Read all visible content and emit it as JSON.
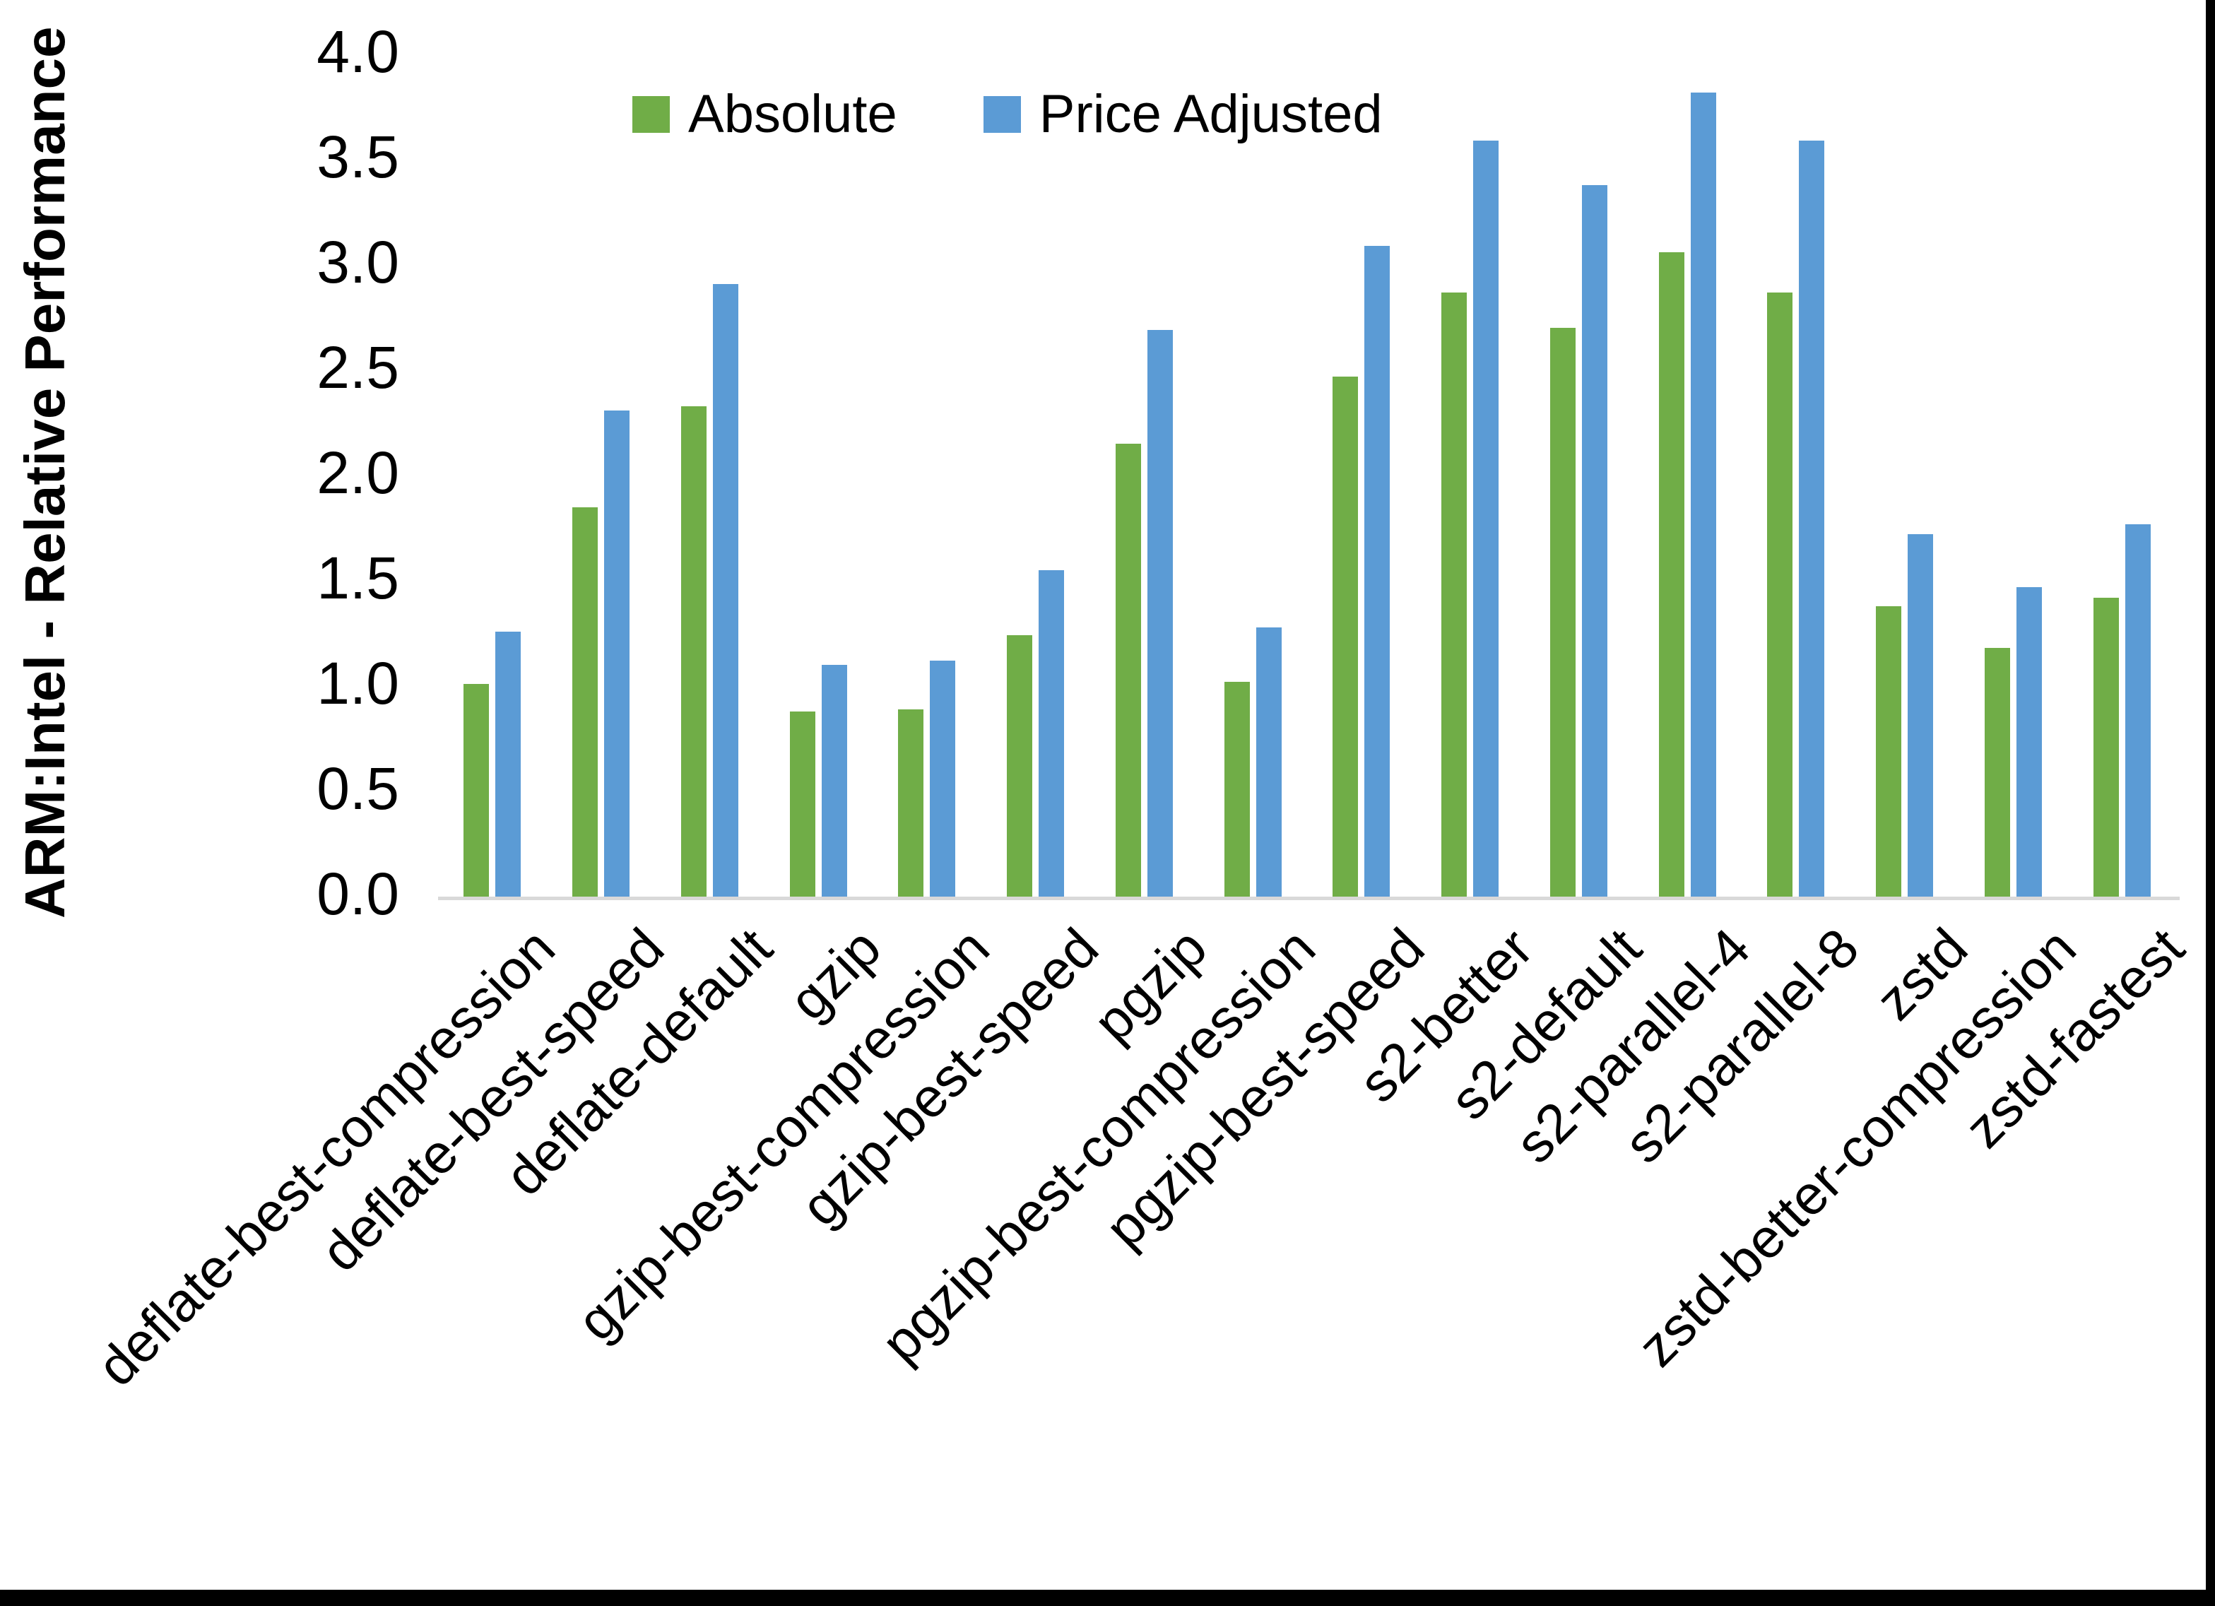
{
  "accent_colors": {
    "absolute_green": "#70AD47",
    "price_adjusted_blue": "#5B9BD5",
    "axis_line_grey": "#D9D9D9",
    "frame_border_black": "#000000"
  },
  "chart_data": {
    "type": "bar",
    "title": "",
    "xlabel": "",
    "ylabel": "ARM:Intel - Relative Performance",
    "ylim": [
      0.0,
      4.0
    ],
    "ytick_step": 0.5,
    "yticks": [
      "0.0",
      "0.5",
      "1.0",
      "1.5",
      "2.0",
      "2.5",
      "3.0",
      "3.5",
      "4.0"
    ],
    "grid": false,
    "legend_position": "top-center",
    "categories": [
      "deflate-best-compression",
      "deflate-best-speed",
      "deflate-default",
      "gzip",
      "gzip-best-compression",
      "gzip-best-speed",
      "pgzip",
      "pgzip-best-compression",
      "pgzip-best-speed",
      "s2-better",
      "s2-default",
      "s2-parallel-4",
      "s2-parallel-8",
      "zstd",
      "zstd-better-compression",
      "zstd-fastest"
    ],
    "series": [
      {
        "name": "Absolute",
        "color": "#70AD47",
        "values": [
          1.01,
          1.85,
          2.33,
          0.88,
          0.89,
          1.24,
          2.15,
          1.02,
          2.47,
          2.87,
          2.7,
          3.06,
          2.87,
          1.38,
          1.18,
          1.42
        ]
      },
      {
        "name": "Price Adjusted",
        "color": "#5B9BD5",
        "values": [
          1.26,
          2.31,
          2.91,
          1.1,
          1.12,
          1.55,
          2.69,
          1.28,
          3.09,
          3.59,
          3.38,
          3.82,
          3.59,
          1.72,
          1.47,
          1.77
        ]
      }
    ]
  }
}
